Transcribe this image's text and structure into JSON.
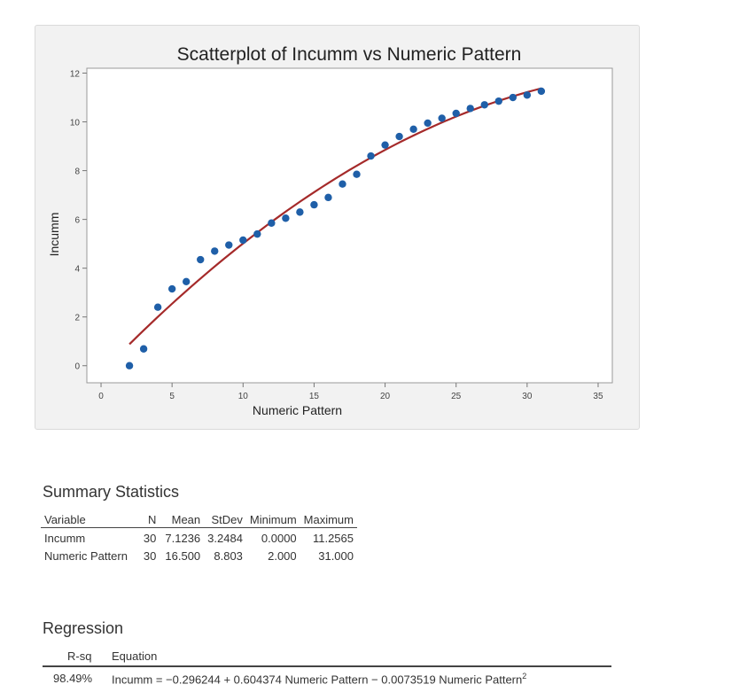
{
  "chart_data": {
    "type": "scatter",
    "title": "Scatterplot of Incumm vs Numeric Pattern",
    "xlabel": "Numeric Pattern",
    "ylabel": "Incumm",
    "xlim": [
      -1,
      36
    ],
    "ylim": [
      -0.7,
      12.2
    ],
    "xticks": [
      0,
      5,
      10,
      15,
      20,
      25,
      30,
      35
    ],
    "yticks": [
      0,
      2,
      4,
      6,
      8,
      10,
      12
    ],
    "grid": false,
    "series": [
      {
        "marker_color": "#1f5fa8",
        "x": [
          2,
          3,
          4,
          5,
          6,
          7,
          8,
          9,
          10,
          11,
          12,
          13,
          14,
          15,
          16,
          17,
          18,
          19,
          20,
          21,
          22,
          23,
          24,
          25,
          26,
          27,
          28,
          29,
          30,
          31
        ],
        "y": [
          0.0,
          0.69,
          2.4,
          3.15,
          3.45,
          4.35,
          4.7,
          4.95,
          5.15,
          5.4,
          5.85,
          6.05,
          6.3,
          6.6,
          6.9,
          7.45,
          7.85,
          8.6,
          9.05,
          9.4,
          9.7,
          9.95,
          10.15,
          10.35,
          10.55,
          10.7,
          10.85,
          11.0,
          11.1,
          11.2565
        ]
      }
    ],
    "fit": {
      "type": "quadratic",
      "color": "#a52a2a",
      "coefficients": [
        -0.296244,
        0.604374,
        -0.0073519
      ],
      "x_range": [
        2,
        31
      ]
    }
  },
  "summary": {
    "title": "Summary Statistics",
    "headers": [
      "Variable",
      "N",
      "Mean",
      "StDev",
      "Minimum",
      "Maximum"
    ],
    "rows": [
      [
        "Incumm",
        "30",
        "7.1236",
        "3.2484",
        "0.0000",
        "11.2565"
      ],
      [
        "Numeric Pattern",
        "30",
        "16.500",
        "8.803",
        "2.000",
        "31.000"
      ]
    ]
  },
  "regression": {
    "title": "Regression",
    "headers": [
      "R-sq",
      "Equation"
    ],
    "rsq": "98.49%",
    "equation": "Incumm = −0.296244 + 0.604374 Numeric Pattern − 0.0073519 Numeric Pattern",
    "equation_exponent": "2"
  }
}
